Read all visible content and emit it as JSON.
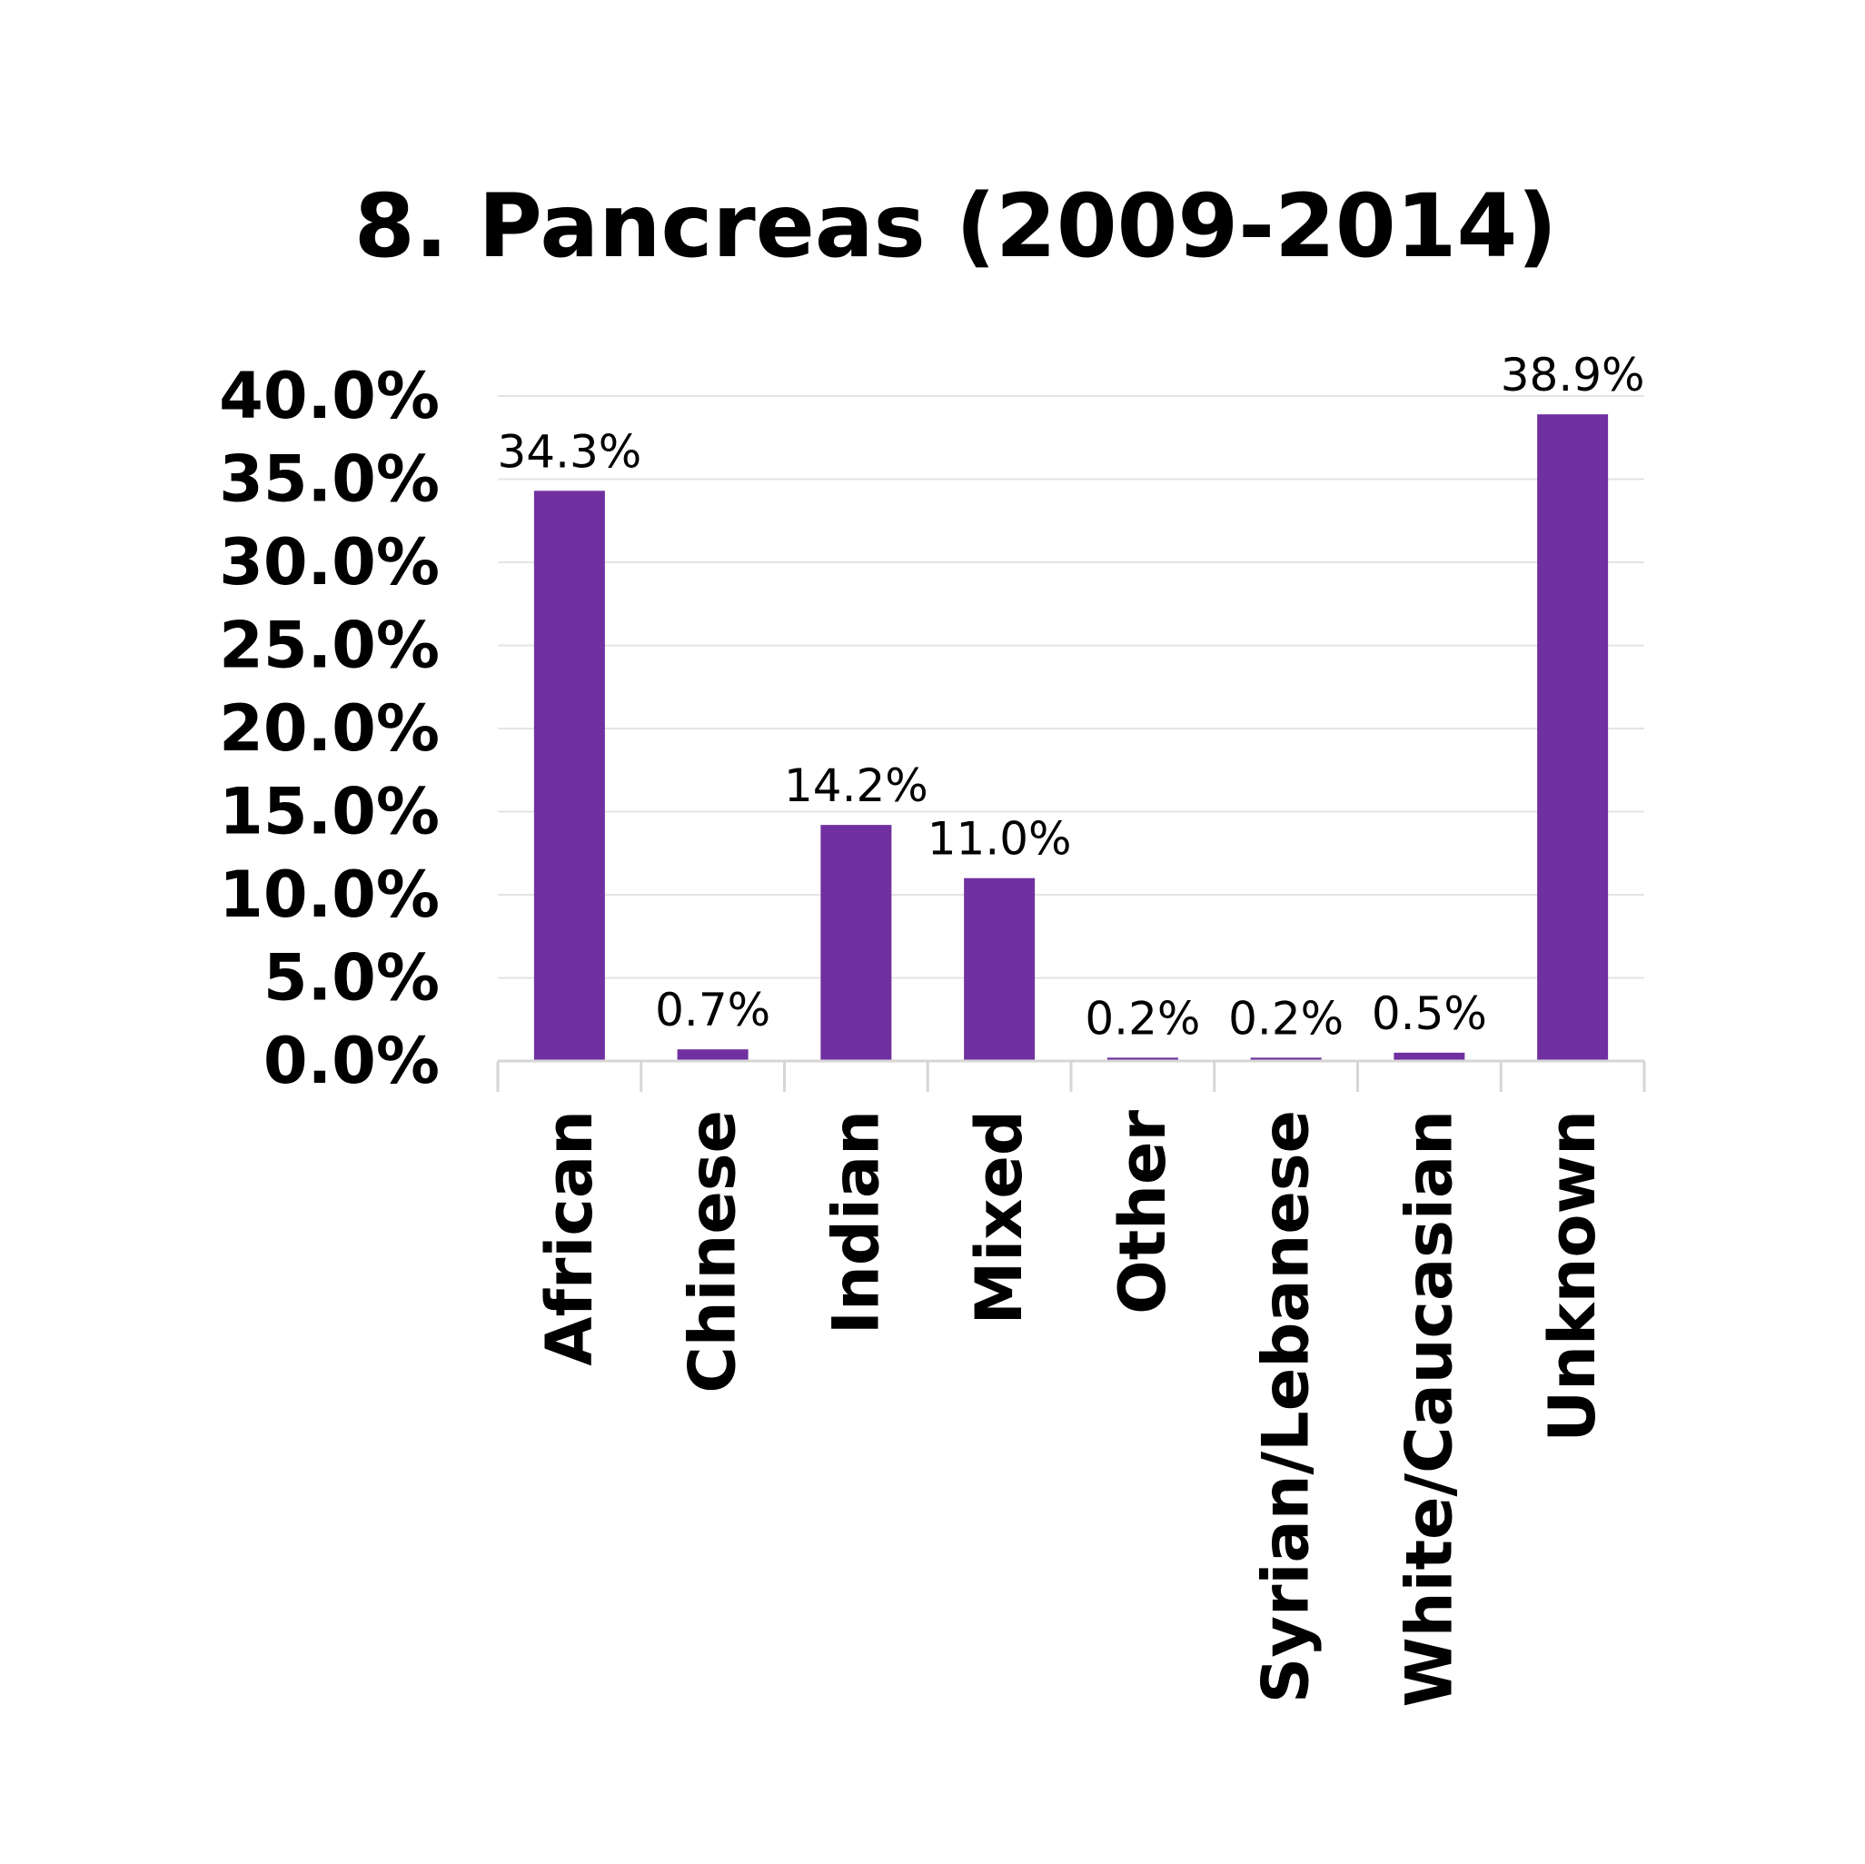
{
  "chart_data": {
    "type": "bar",
    "title": "8. Pancreas (2009-2014)",
    "xlabel": "",
    "ylabel": "",
    "categories": [
      "African",
      "Chinese",
      "Indian",
      "Mixed",
      "Other",
      "Syrian/Lebanese",
      "White/Caucasian",
      "Unknown"
    ],
    "values": [
      34.3,
      0.7,
      14.2,
      11.0,
      0.2,
      0.2,
      0.5,
      38.9
    ],
    "data_labels": [
      "34.3%",
      "0.7%",
      "14.2%",
      "11.0%",
      "0.2%",
      "0.2%",
      "0.5%",
      "38.9%"
    ],
    "yticks": [
      "0.0%",
      "5.0%",
      "10.0%",
      "15.0%",
      "20.0%",
      "25.0%",
      "30.0%",
      "35.0%",
      "40.0%"
    ],
    "ylim": [
      0,
      40
    ],
    "grid": true,
    "legend": "none",
    "bar_color": "#7030a0"
  }
}
